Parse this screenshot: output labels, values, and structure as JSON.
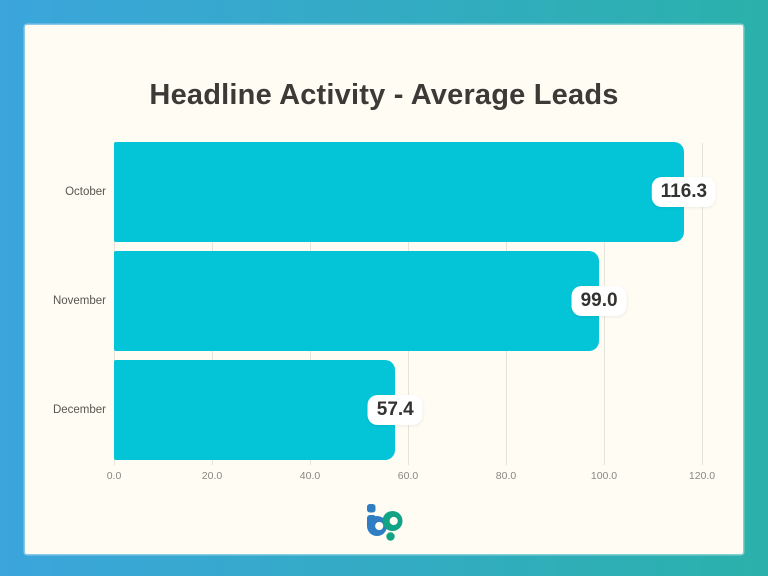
{
  "frame": {
    "border_gradient_left": "#3ba5dc",
    "border_gradient_right": "#2bb1ab",
    "card_background": "#fffcf4"
  },
  "chart_data": {
    "type": "bar",
    "orientation": "horizontal",
    "title": "Headline Activity - Average Leads",
    "categories": [
      "October",
      "November",
      "December"
    ],
    "values": [
      116.3,
      99.0,
      57.4
    ],
    "value_labels": [
      "116.3",
      "99.0",
      "57.4"
    ],
    "x_ticks": [
      0,
      20,
      40,
      60,
      80,
      100,
      120
    ],
    "x_tick_labels": [
      "0.0",
      "20.0",
      "40.0",
      "60.0",
      "80.0",
      "100.0",
      "120.0"
    ],
    "xlim": [
      0,
      120
    ],
    "bar_color": "#03c5d7",
    "gridline_color": "#e6e3da",
    "grid": true,
    "legend": false
  },
  "logo": {
    "name": "bp-logo",
    "blue": "#2f7dc3",
    "teal": "#12a284"
  }
}
